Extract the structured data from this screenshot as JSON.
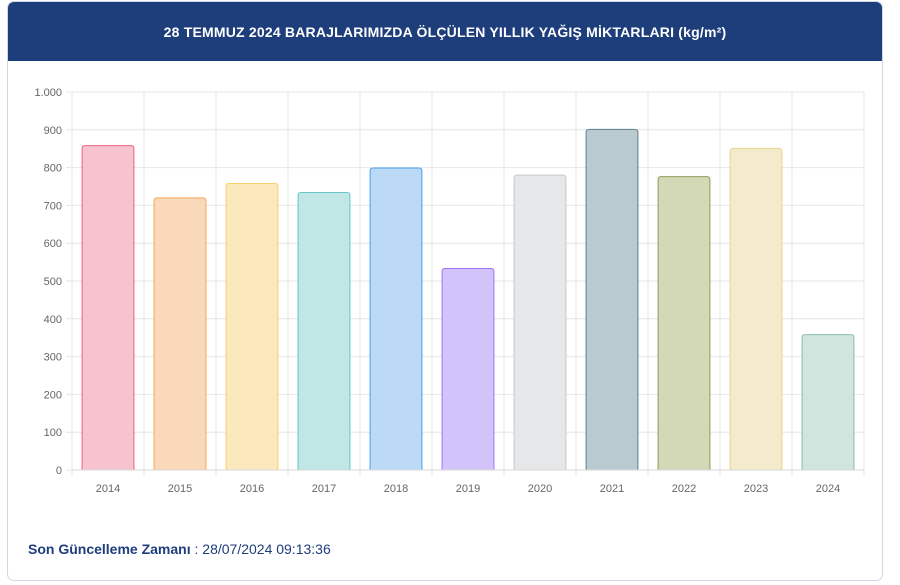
{
  "header": {
    "title": "28 TEMMUZ 2024 BARAJLARIMIZDA ÖLÇÜLEN YILLIK YAĞIŞ MİKTARLARI (kg/m²)"
  },
  "footer": {
    "label": "Son Güncelleme Zamanı",
    "separator": " : ",
    "timestamp": "28/07/2024 09:13:36"
  },
  "chart_data": {
    "type": "bar",
    "categories": [
      "2014",
      "2015",
      "2016",
      "2017",
      "2018",
      "2019",
      "2020",
      "2021",
      "2022",
      "2023",
      "2024"
    ],
    "values": [
      858,
      720,
      758,
      734,
      799,
      533,
      780,
      901,
      776,
      851,
      358
    ],
    "ylim": [
      0,
      1000
    ],
    "yticks": [
      0,
      100,
      200,
      300,
      400,
      500,
      600,
      700,
      800,
      900,
      1000
    ],
    "ytick_labels": [
      "0",
      "100",
      "200",
      "300",
      "400",
      "500",
      "600",
      "700",
      "800",
      "900",
      "1.000"
    ],
    "grid": true,
    "legend": "none",
    "fill_colors": [
      "#f7c3ce",
      "#fad9bb",
      "#fbe9bd",
      "#c1e6e6",
      "#bcdaf6",
      "#d2c3fb",
      "#e6e7e9",
      "#b9cbd0",
      "#d3d9b6",
      "#f4ebcd",
      "#cfe5de"
    ],
    "stroke_colors": [
      "#e9607d",
      "#f4a65a",
      "#f7cf6a",
      "#67c6c6",
      "#4a9ee8",
      "#9d72f5",
      "#c5c7cb",
      "#5f7f86",
      "#8e9c5a",
      "#e8d48f",
      "#86bda9"
    ]
  }
}
